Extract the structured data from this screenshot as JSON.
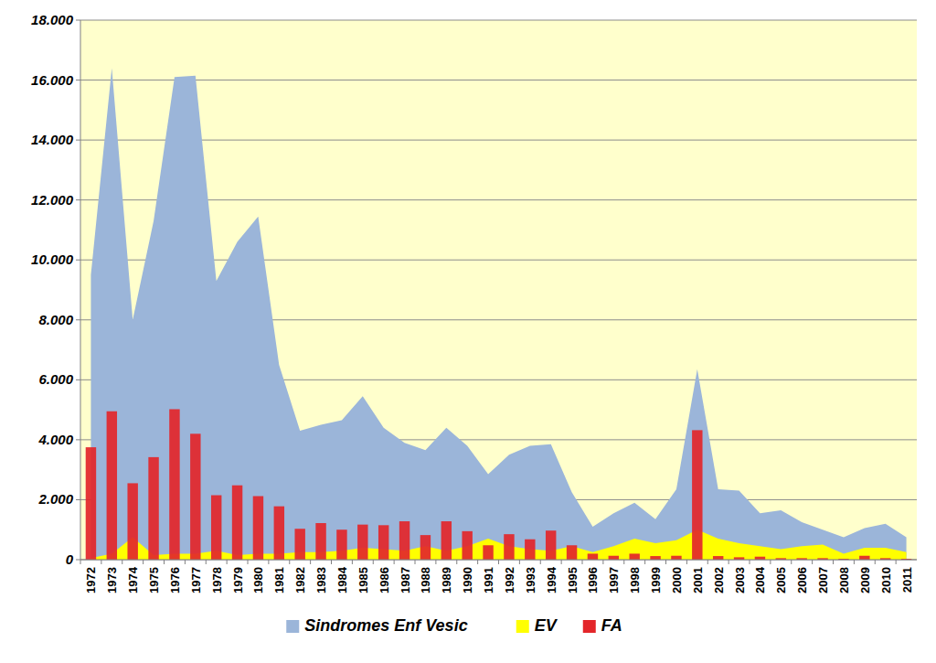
{
  "chart_data": {
    "type": "area",
    "categories": [
      "1972",
      "1973",
      "1974",
      "1975",
      "1976",
      "1977",
      "1978",
      "1979",
      "1980",
      "1981",
      "1982",
      "1983",
      "1984",
      "1985",
      "1986",
      "1987",
      "1988",
      "1989",
      "1990",
      "1991",
      "1992",
      "1993",
      "1994",
      "1995",
      "1996",
      "1997",
      "1998",
      "1999",
      "2000",
      "2001",
      "2002",
      "2003",
      "2004",
      "2005",
      "2006",
      "2007",
      "2008",
      "2009",
      "2010",
      "2011"
    ],
    "series": [
      {
        "name": "Sindromes Enf Vesic",
        "type": "area",
        "color": "#9bb5d9",
        "values": [
          9500,
          16400,
          8000,
          11300,
          16100,
          16150,
          9300,
          10600,
          11450,
          6500,
          4300,
          4500,
          4650,
          5450,
          4400,
          3900,
          3650,
          4400,
          3800,
          2850,
          3500,
          3800,
          3850,
          2250,
          1100,
          1550,
          1900,
          1350,
          2350,
          6350,
          2350,
          2300,
          1550,
          1650,
          1250,
          1000,
          750,
          1050,
          1200,
          750
        ]
      },
      {
        "name": "EV",
        "type": "area",
        "color": "#ffff00",
        "values": [
          50,
          200,
          750,
          150,
          200,
          200,
          300,
          150,
          200,
          200,
          250,
          250,
          300,
          400,
          350,
          300,
          450,
          300,
          450,
          700,
          450,
          350,
          300,
          450,
          250,
          450,
          700,
          550,
          650,
          1000,
          700,
          550,
          450,
          350,
          450,
          500,
          200,
          400,
          400,
          250
        ]
      },
      {
        "name": "FA",
        "type": "bar",
        "color": "#e3262a",
        "values": [
          3750,
          4950,
          2550,
          3420,
          5020,
          4200,
          2150,
          2480,
          2120,
          1780,
          1030,
          1220,
          1000,
          1170,
          1150,
          1280,
          820,
          1280,
          950,
          480,
          850,
          680,
          970,
          480,
          200,
          130,
          200,
          120,
          130,
          4320,
          120,
          80,
          100,
          50,
          50,
          50,
          30,
          130,
          50,
          30
        ]
      }
    ],
    "ylim": [
      0,
      18000
    ],
    "yticks": [
      0,
      {
        "value": 2000,
        "label": "2.000"
      },
      {
        "value": 4000,
        "label": "4.000"
      },
      {
        "value": 6000,
        "label": "6.000"
      },
      {
        "value": 8000,
        "label": "8.000"
      },
      {
        "value": 10000,
        "label": "10.000"
      },
      {
        "value": 12000,
        "label": "12.000"
      },
      {
        "value": 14000,
        "label": "14.000"
      },
      {
        "value": 16000,
        "label": "16.000"
      },
      {
        "value": 18000,
        "label": "18.000"
      }
    ],
    "grid": true,
    "stacked": false,
    "legend": "bottom"
  }
}
